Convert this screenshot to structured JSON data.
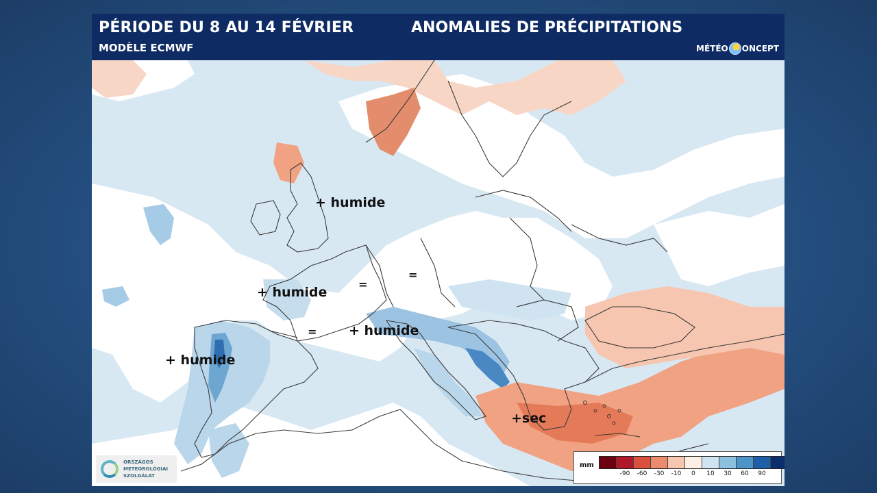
{
  "header": {
    "period": "PÉRIODE DU 8 AU 14 FÉVRIER",
    "model": "MODÈLE ECMWF",
    "title": "ANOMALIES DE PRÉCIPITATIONS",
    "logo_left": "MÉTÉO",
    "logo_right": "ONCEPT"
  },
  "annotations": {
    "uk": "+ humide",
    "west_france": "+ humide",
    "iberia": "+ humide",
    "alps": "+ humide",
    "eq_belgium": "=",
    "eq_germany": "=",
    "eq_south_france": "=",
    "east_med": "+sec"
  },
  "legend": {
    "unit": "mm",
    "colors": [
      "#6b0010",
      "#b0182a",
      "#d9503f",
      "#eb8a6c",
      "#f6c6b0",
      "#fdeee6",
      "#cfe3f1",
      "#8cc0de",
      "#4d95c9",
      "#1f5ea8",
      "#0b2f6e"
    ],
    "ticks": [
      "-90",
      "-60",
      "-30",
      "-10",
      "0",
      "10",
      "30",
      "60",
      "90"
    ]
  },
  "credit": {
    "line1": "ORSZÁGOS",
    "line2": "METEOROLÓGIAI",
    "line3": "SZOLGÁLAT"
  },
  "palette": {
    "sea_wet": "#d2e4f0",
    "wet_light": "#b9d6ea",
    "wet_mid": "#7fb3d8",
    "wet_strong": "#3f7fbf",
    "dry_light": "#f8d6c6",
    "dry_mid": "#f0a283",
    "dry_strong": "#e0734f"
  }
}
